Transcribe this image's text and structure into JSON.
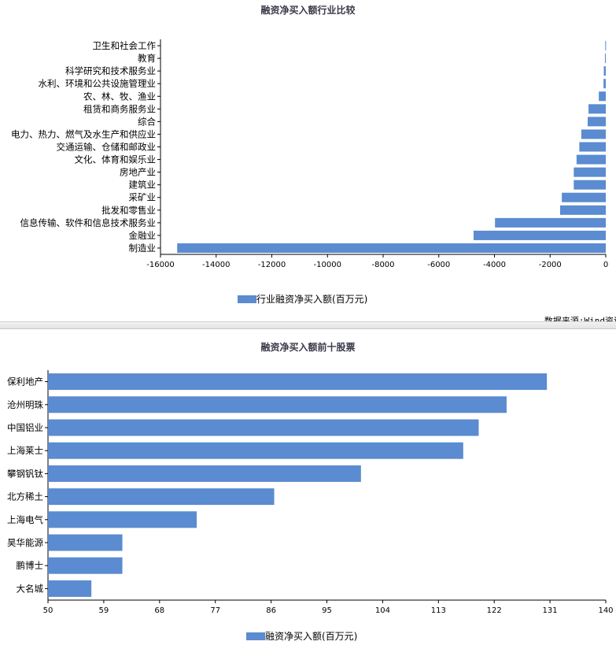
{
  "chart_data": [
    {
      "type": "bar",
      "orientation": "horizontal",
      "title": "融资净买入额行业比较",
      "categories": [
        "卫生和社会工作",
        "教育",
        "科学研究和技术服务业",
        "水利、环境和公共设施管理业",
        "农、林、牧、渔业",
        "租赁和商务服务业",
        "综合",
        "电力、热力、燃气及水生产和供应业",
        "交通运输、仓储和邮政业",
        "文化、体育和娱乐业",
        "房地产业",
        "建筑业",
        "采矿业",
        "批发和零售业",
        "信息传输、软件和信息技术服务业",
        "金融业",
        "制造业"
      ],
      "values": [
        -20,
        -30,
        -70,
        -80,
        -250,
        -620,
        -650,
        -880,
        -950,
        -1050,
        -1150,
        -1150,
        -1580,
        -1640,
        -3980,
        -4750,
        -15400
      ],
      "xlim": [
        -16000,
        0
      ],
      "xticks": [
        "-16000",
        "-14000",
        "-12000",
        "-10000",
        "-8000",
        "-6000",
        "-4000",
        "-2000",
        "0"
      ],
      "legend": "行业融资净买入额(百万元)",
      "color": "#5b8bd0"
    },
    {
      "type": "bar",
      "orientation": "horizontal",
      "title": "融资净买入额前十股票",
      "categories": [
        "保利地产",
        "沧州明珠",
        "中国铝业",
        "上海莱士",
        "攀钢钒钛",
        "北方稀土",
        "上海电气",
        "昊华能源",
        "鹏博士",
        "大名城"
      ],
      "values": [
        130.5,
        124,
        119.5,
        117,
        100.5,
        86.5,
        74,
        62,
        62,
        57
      ],
      "xlim": [
        50,
        140
      ],
      "xticks": [
        "50",
        "59",
        "68",
        "77",
        "86",
        "95",
        "104",
        "113",
        "122",
        "131",
        "140"
      ],
      "legend": "融资净买入额(百万元)",
      "color": "#5b8bd0"
    }
  ],
  "source": "数据来源:Wind资讯"
}
